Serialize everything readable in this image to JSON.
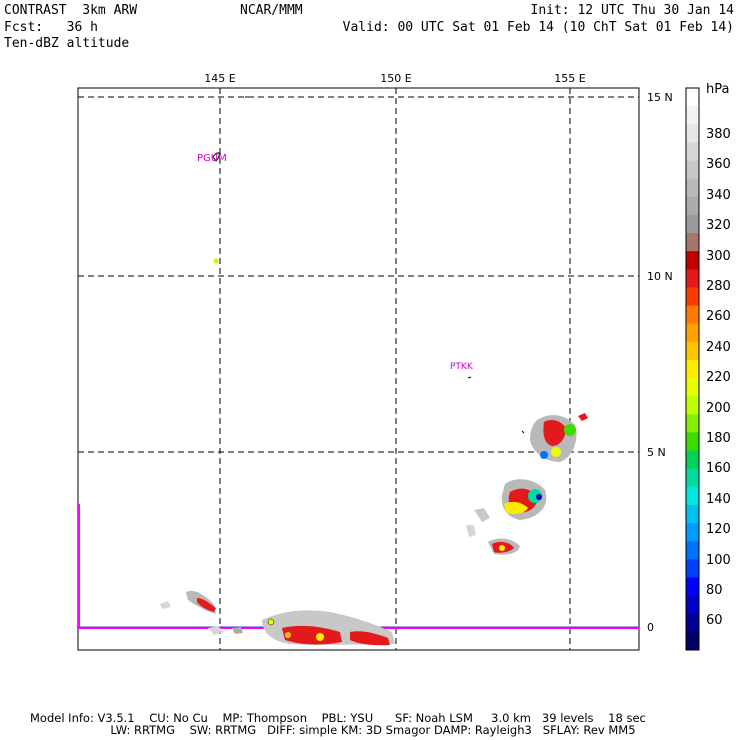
{
  "header": {
    "left": [
      "CONTRAST  3km ARW",
      "Fcst:   36 h",
      "Ten-dBZ altitude"
    ],
    "center": "NCAR/MMM",
    "right": [
      "Init: 12 UTC Thu 30 Jan 14",
      "Valid: 00 UTC Sat 01 Feb 14 (10 ChT Sat 01 Feb 14)"
    ]
  },
  "map": {
    "lon_labels": [
      "145 E",
      "150 E",
      "155 E"
    ],
    "lat_labels": [
      "15 N",
      "10 N",
      "5 N",
      "0"
    ],
    "stations": [
      "PGUM",
      "PTKK"
    ]
  },
  "colorbar": {
    "unit": "hPa",
    "labels": [
      "380",
      "360",
      "340",
      "320",
      "300",
      "280",
      "260",
      "240",
      "220",
      "200",
      "180",
      "160",
      "140",
      "120",
      "100",
      "80",
      "60"
    ],
    "colors": [
      "#ffffff",
      "#f2f2f2",
      "#e6e6e6",
      "#d6d6d6",
      "#c8c8c8",
      "#b9b9b9",
      "#ababab",
      "#9b9b9b",
      "#a8756b",
      "#c00000",
      "#e31a1c",
      "#ff3a00",
      "#ff7a00",
      "#ffa200",
      "#ffc400",
      "#ffea00",
      "#e8ff00",
      "#bfff00",
      "#86f000",
      "#3cdc00",
      "#00d25a",
      "#00dca0",
      "#00e6dc",
      "#00c0f0",
      "#009cff",
      "#0070ff",
      "#0040ff",
      "#0000ff",
      "#0000c8",
      "#000096",
      "#000064"
    ]
  },
  "footer": [
    "Model Info: V3.5.1    CU: No Cu    MP: Thompson    PBL: YSU      SF: Noah LSM     3.0 km   39 levels    18 sec",
    "                      LW: RRTMG    SW: RRTMG   DIFF: simple KM: 3D Smagor DAMP: Rayleigh3   SFLAY: Rev MM5"
  ]
}
